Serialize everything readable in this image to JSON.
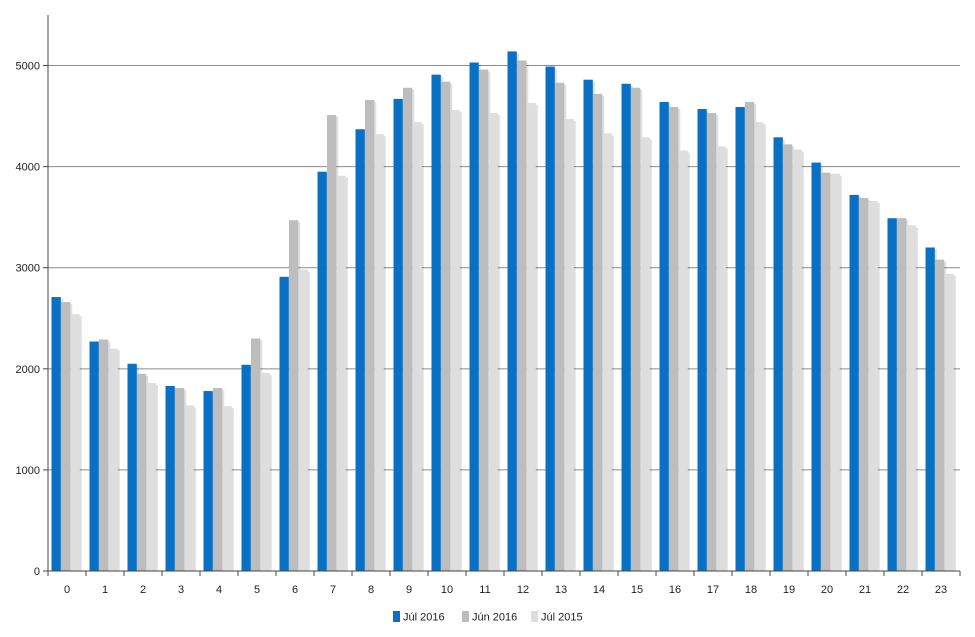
{
  "chart_data": {
    "type": "bar",
    "categories": [
      "0",
      "1",
      "2",
      "3",
      "4",
      "5",
      "6",
      "7",
      "8",
      "9",
      "10",
      "11",
      "12",
      "13",
      "14",
      "15",
      "16",
      "17",
      "18",
      "19",
      "20",
      "21",
      "22",
      "23"
    ],
    "series": [
      {
        "name": "Júl 2016",
        "color": "#0a70c4",
        "values": [
          2710,
          2270,
          2050,
          1830,
          1780,
          2040,
          2910,
          3950,
          4370,
          4670,
          4910,
          5030,
          5140,
          4990,
          4860,
          4820,
          4640,
          4570,
          4590,
          4290,
          4040,
          3720,
          3490,
          3200
        ]
      },
      {
        "name": "Jún 2016",
        "color": "#bdbdbd",
        "values": [
          2660,
          2290,
          1950,
          1810,
          1810,
          2300,
          3470,
          4510,
          4660,
          4780,
          4840,
          4960,
          5050,
          4830,
          4720,
          4780,
          4590,
          4530,
          4640,
          4220,
          3940,
          3690,
          3490,
          3080
        ]
      },
      {
        "name": "Júl 2015",
        "color": "#dedede",
        "values": [
          2540,
          2200,
          1860,
          1640,
          1630,
          1960,
          2980,
          3910,
          4320,
          4440,
          4560,
          4530,
          4630,
          4470,
          4330,
          4290,
          4160,
          4200,
          4440,
          4170,
          3930,
          3660,
          3420,
          2940
        ]
      }
    ],
    "yticks": [
      0,
      1000,
      2000,
      3000,
      4000,
      5000
    ],
    "ylim": [
      0,
      5500
    ],
    "grid": true,
    "legend_position": "bottom"
  }
}
